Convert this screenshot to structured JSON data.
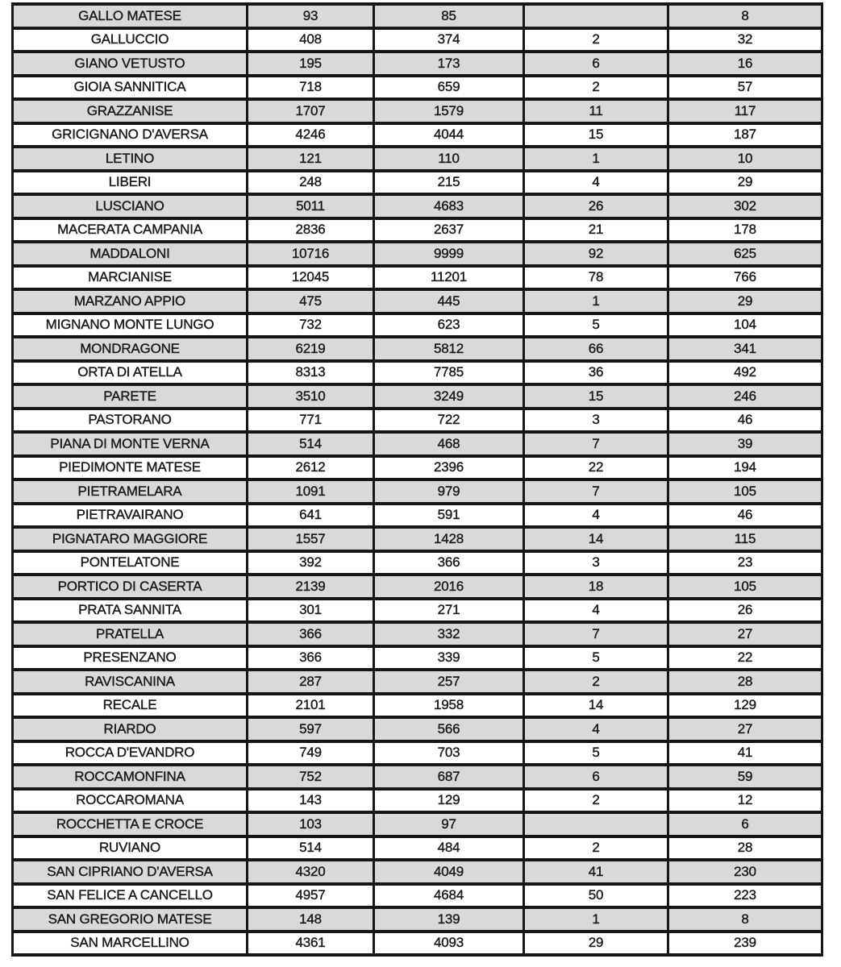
{
  "document": {
    "type": "scanned-table-page",
    "header_row_visible": false,
    "columns_count": 5
  },
  "colors": {
    "page_background": "#ffffff",
    "row_shade": "#d9d9d9",
    "row_plain": "#ffffff",
    "border": "#161616",
    "text": "#1c1c1c"
  },
  "table": {
    "rows": [
      {
        "name": "GALLO MATESE",
        "cells": [
          "93",
          "85",
          "",
          "8"
        ],
        "shaded": true
      },
      {
        "name": "GALLUCCIO",
        "cells": [
          "408",
          "374",
          "2",
          "32"
        ],
        "shaded": false
      },
      {
        "name": "GIANO VETUSTO",
        "cells": [
          "195",
          "173",
          "6",
          "16"
        ],
        "shaded": true
      },
      {
        "name": "GIOIA SANNITICA",
        "cells": [
          "718",
          "659",
          "2",
          "57"
        ],
        "shaded": false
      },
      {
        "name": "GRAZZANISE",
        "cells": [
          "1707",
          "1579",
          "11",
          "117"
        ],
        "shaded": true
      },
      {
        "name": "GRICIGNANO D'AVERSA",
        "cells": [
          "4246",
          "4044",
          "15",
          "187"
        ],
        "shaded": false
      },
      {
        "name": "LETINO",
        "cells": [
          "121",
          "110",
          "1",
          "10"
        ],
        "shaded": true
      },
      {
        "name": "LIBERI",
        "cells": [
          "248",
          "215",
          "4",
          "29"
        ],
        "shaded": false
      },
      {
        "name": "LUSCIANO",
        "cells": [
          "5011",
          "4683",
          "26",
          "302"
        ],
        "shaded": true
      },
      {
        "name": "MACERATA CAMPANIA",
        "cells": [
          "2836",
          "2637",
          "21",
          "178"
        ],
        "shaded": false
      },
      {
        "name": "MADDALONI",
        "cells": [
          "10716",
          "9999",
          "92",
          "625"
        ],
        "shaded": true
      },
      {
        "name": "MARCIANISE",
        "cells": [
          "12045",
          "11201",
          "78",
          "766"
        ],
        "shaded": false
      },
      {
        "name": "MARZANO APPIO",
        "cells": [
          "475",
          "445",
          "1",
          "29"
        ],
        "shaded": true
      },
      {
        "name": "MIGNANO MONTE LUNGO",
        "cells": [
          "732",
          "623",
          "5",
          "104"
        ],
        "shaded": false
      },
      {
        "name": "MONDRAGONE",
        "cells": [
          "6219",
          "5812",
          "66",
          "341"
        ],
        "shaded": true
      },
      {
        "name": "ORTA DI ATELLA",
        "cells": [
          "8313",
          "7785",
          "36",
          "492"
        ],
        "shaded": false
      },
      {
        "name": "PARETE",
        "cells": [
          "3510",
          "3249",
          "15",
          "246"
        ],
        "shaded": true
      },
      {
        "name": "PASTORANO",
        "cells": [
          "771",
          "722",
          "3",
          "46"
        ],
        "shaded": false
      },
      {
        "name": "PIANA DI MONTE VERNA",
        "cells": [
          "514",
          "468",
          "7",
          "39"
        ],
        "shaded": true
      },
      {
        "name": "PIEDIMONTE MATESE",
        "cells": [
          "2612",
          "2396",
          "22",
          "194"
        ],
        "shaded": false
      },
      {
        "name": "PIETRAMELARA",
        "cells": [
          "1091",
          "979",
          "7",
          "105"
        ],
        "shaded": true
      },
      {
        "name": "PIETRAVAIRANO",
        "cells": [
          "641",
          "591",
          "4",
          "46"
        ],
        "shaded": false
      },
      {
        "name": "PIGNATARO MAGGIORE",
        "cells": [
          "1557",
          "1428",
          "14",
          "115"
        ],
        "shaded": true
      },
      {
        "name": "PONTELATONE",
        "cells": [
          "392",
          "366",
          "3",
          "23"
        ],
        "shaded": false
      },
      {
        "name": "PORTICO DI CASERTA",
        "cells": [
          "2139",
          "2016",
          "18",
          "105"
        ],
        "shaded": true
      },
      {
        "name": "PRATA SANNITA",
        "cells": [
          "301",
          "271",
          "4",
          "26"
        ],
        "shaded": false
      },
      {
        "name": "PRATELLA",
        "cells": [
          "366",
          "332",
          "7",
          "27"
        ],
        "shaded": true
      },
      {
        "name": "PRESENZANO",
        "cells": [
          "366",
          "339",
          "5",
          "22"
        ],
        "shaded": false
      },
      {
        "name": "RAVISCANINA",
        "cells": [
          "287",
          "257",
          "2",
          "28"
        ],
        "shaded": true
      },
      {
        "name": "RECALE",
        "cells": [
          "2101",
          "1958",
          "14",
          "129"
        ],
        "shaded": false
      },
      {
        "name": "RIARDO",
        "cells": [
          "597",
          "566",
          "4",
          "27"
        ],
        "shaded": true
      },
      {
        "name": "ROCCA D'EVANDRO",
        "cells": [
          "749",
          "703",
          "5",
          "41"
        ],
        "shaded": false
      },
      {
        "name": "ROCCAMONFINA",
        "cells": [
          "752",
          "687",
          "6",
          "59"
        ],
        "shaded": true
      },
      {
        "name": "ROCCAROMANA",
        "cells": [
          "143",
          "129",
          "2",
          "12"
        ],
        "shaded": false
      },
      {
        "name": "ROCCHETTA E CROCE",
        "cells": [
          "103",
          "97",
          "",
          "6"
        ],
        "shaded": true
      },
      {
        "name": "RUVIANO",
        "cells": [
          "514",
          "484",
          "2",
          "28"
        ],
        "shaded": false
      },
      {
        "name": "SAN CIPRIANO D'AVERSA",
        "cells": [
          "4320",
          "4049",
          "41",
          "230"
        ],
        "shaded": true
      },
      {
        "name": "SAN FELICE A CANCELLO",
        "cells": [
          "4957",
          "4684",
          "50",
          "223"
        ],
        "shaded": false
      },
      {
        "name": "SAN GREGORIO MATESE",
        "cells": [
          "148",
          "139",
          "1",
          "8"
        ],
        "shaded": true
      },
      {
        "name": "SAN MARCELLINO",
        "cells": [
          "4361",
          "4093",
          "29",
          "239"
        ],
        "shaded": false
      }
    ]
  }
}
